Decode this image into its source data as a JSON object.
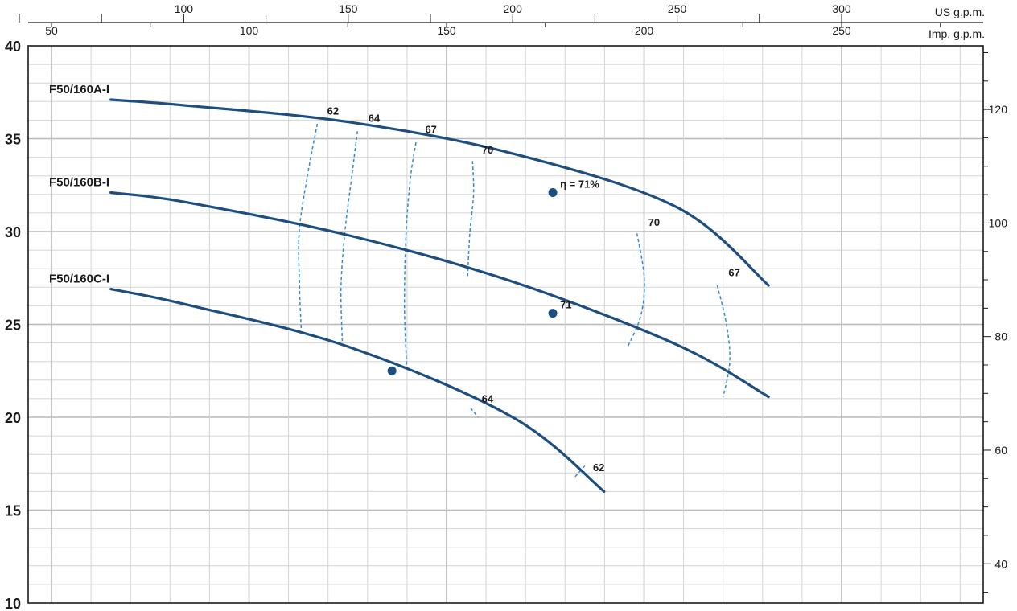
{
  "chart_data": {
    "type": "line",
    "title": "",
    "colors": {
      "curve": "#1d4e80",
      "iso": "#2e8bd6",
      "dot": "#1d4e80"
    },
    "y_left": {
      "range": [
        10,
        40
      ],
      "ticks": [
        10,
        15,
        20,
        25,
        30,
        35,
        40
      ]
    },
    "y_right": {
      "range": [
        33.1,
        131.2
      ],
      "ticks": [
        40,
        60,
        80,
        100,
        120
      ]
    },
    "x_top_us": {
      "label": "US g.p.m.",
      "range": [
        50,
        300
      ],
      "ticks": [
        100,
        150,
        200,
        250,
        300
      ]
    },
    "x_top_imp": {
      "label": "Imp. g.p.m.",
      "range": [
        50,
        300
      ],
      "ticks": [
        50,
        100,
        150,
        200,
        250
      ]
    },
    "grid": true,
    "series": [
      {
        "name": "F50/160A-I",
        "x": [
          77.8,
          100,
          150,
          200,
          250,
          277.8
        ],
        "y": [
          37.1,
          36.8,
          35.9,
          34.2,
          31.3,
          27.1
        ]
      },
      {
        "name": "F50/160B-I",
        "x": [
          77.8,
          100,
          150,
          200,
          250,
          277.8
        ],
        "y": [
          32.1,
          31.6,
          29.8,
          27.3,
          23.9,
          21.1
        ]
      },
      {
        "name": "F50/160C-I",
        "x": [
          77.8,
          100,
          150,
          200,
          227.8
        ],
        "y": [
          26.9,
          26.1,
          23.8,
          20.0,
          16.0
        ]
      }
    ],
    "best_points": [
      {
        "series": "F50/160A-I",
        "x": 212.2,
        "y": 32.1,
        "label": "η = 71%"
      },
      {
        "series": "F50/160B-I",
        "x": 212.2,
        "y": 25.6,
        "label": "71"
      },
      {
        "series": "F50/160C-I",
        "x": 163.3,
        "y": 22.5,
        "label": ""
      }
    ],
    "efficiency_lines": [
      {
        "label": "62",
        "points": [
          [
            140.6,
            35.8
          ],
          [
            137.6,
            33
          ],
          [
            135.1,
            30
          ],
          [
            135.2,
            27
          ],
          [
            135.7,
            24.8
          ]
        ]
      },
      {
        "label": "64",
        "points": [
          [
            152.8,
            35.4
          ],
          [
            151.1,
            33
          ],
          [
            149,
            30
          ],
          [
            147.8,
            27
          ],
          [
            148.2,
            24.1
          ]
        ]
      },
      {
        "label": "67",
        "points": [
          [
            170.6,
            34.8
          ],
          [
            169,
            33
          ],
          [
            167.6,
            30
          ],
          [
            167.1,
            26
          ],
          [
            167.8,
            22.6
          ]
        ]
      },
      {
        "label": "70",
        "points": [
          [
            187.8,
            33.8
          ],
          [
            188.1,
            32
          ],
          [
            187,
            30
          ],
          [
            186.3,
            27.6
          ]
        ]
      },
      {
        "label": "70",
        "points": [
          [
            237.8,
            29.9
          ],
          [
            240,
            27.5
          ],
          [
            239,
            25.5
          ],
          [
            235,
            23.8
          ]
        ]
      },
      {
        "label": "67",
        "points": [
          [
            262.2,
            27.1
          ],
          [
            265,
            25
          ],
          [
            266,
            23
          ],
          [
            264,
            21.1
          ]
        ]
      },
      {
        "label": "64",
        "points": [
          [
            187.2,
            20.5
          ],
          [
            189.5,
            20.0
          ]
        ]
      },
      {
        "label": "62",
        "points": [
          [
            219,
            16.8
          ],
          [
            222,
            17.4
          ]
        ]
      }
    ],
    "efficiency_labels": [
      {
        "text": "62",
        "x": 143.6,
        "y": 36.3
      },
      {
        "text": "64",
        "x": 156.1,
        "y": 35.9
      },
      {
        "text": "67",
        "x": 173.4,
        "y": 35.3
      },
      {
        "text": "70",
        "x": 190.6,
        "y": 34.2
      },
      {
        "text": "70",
        "x": 241.2,
        "y": 30.3
      },
      {
        "text": "67",
        "x": 265.6,
        "y": 27.6
      },
      {
        "text": "64",
        "x": 190.6,
        "y": 20.8
      },
      {
        "text": "62",
        "x": 224.4,
        "y": 17.1
      }
    ]
  }
}
